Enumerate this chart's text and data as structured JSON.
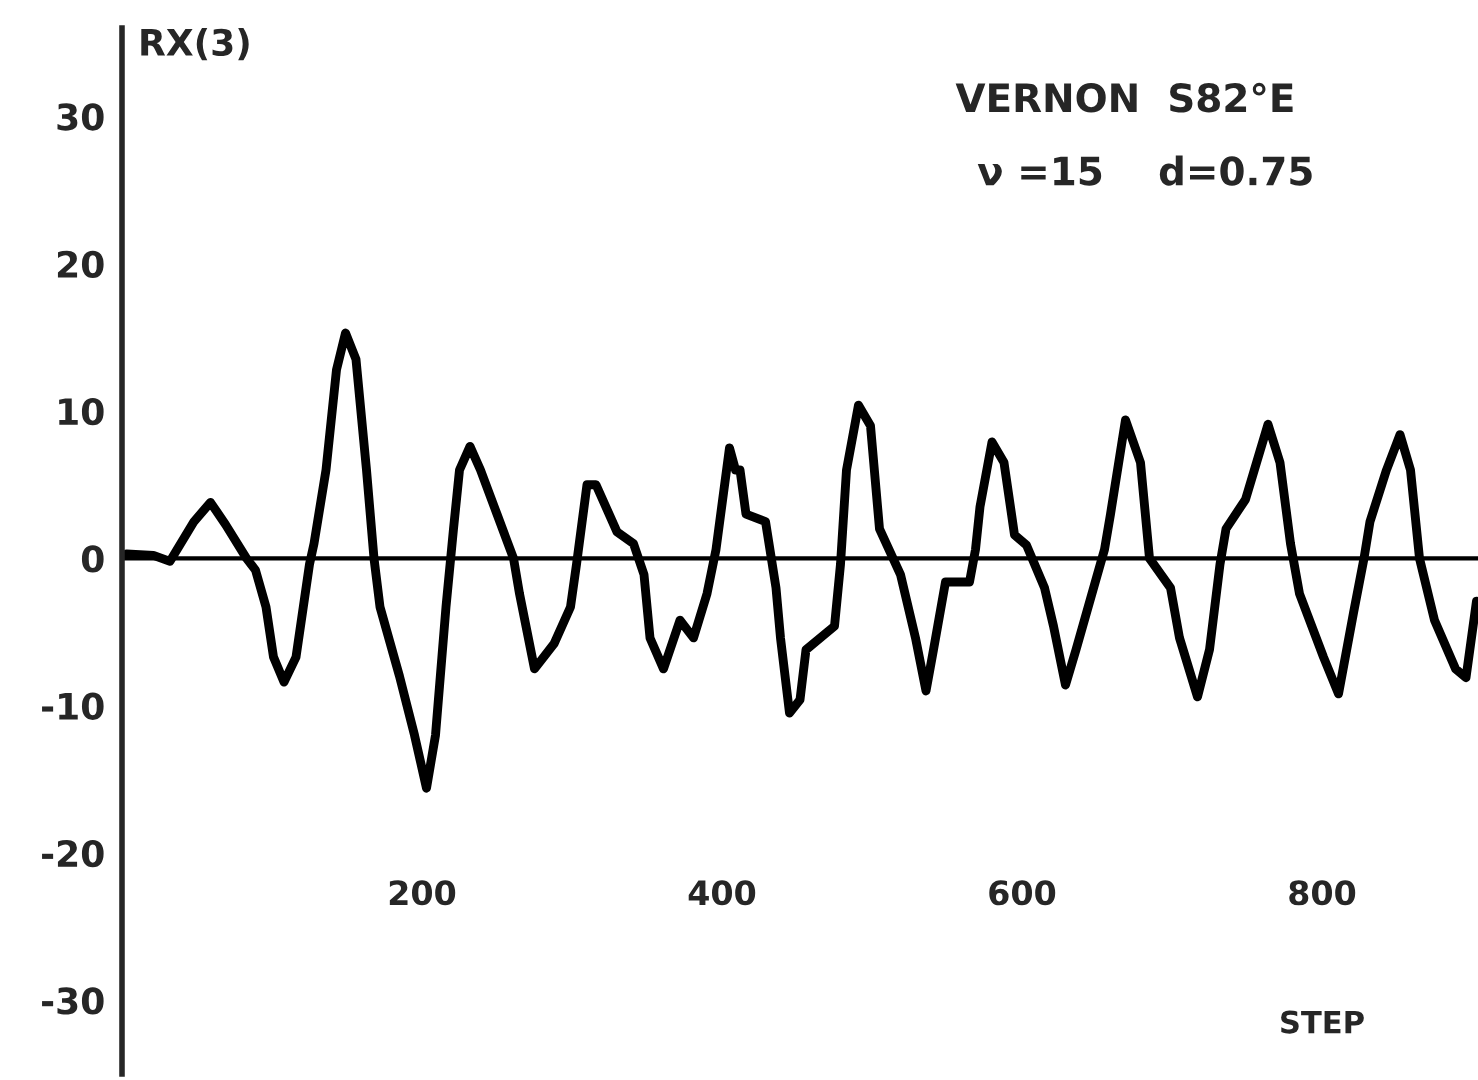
{
  "chart_data": {
    "type": "line",
    "ylabel": "RX(3)",
    "xlabel": "STEP",
    "annotations": [
      "VERNON  S82°E",
      "ν =15    d=0.75"
    ],
    "xlim": [
      0,
      904
    ],
    "ylim": [
      -35,
      36
    ],
    "xticks": [
      200,
      400,
      600,
      800
    ],
    "yticks": [
      -30,
      -20,
      -10,
      0,
      10,
      20,
      30
    ],
    "grid": false,
    "legend": false,
    "marker": "none",
    "line_style": "solid",
    "ref_lines": [
      {
        "axis": "y",
        "value": 0,
        "color": "#000000",
        "line_style": "solid"
      }
    ],
    "series": [
      {
        "color": "#000000",
        "x": [
          3,
          21,
          32,
          48,
          59,
          69,
          83,
          89,
          96,
          101,
          108,
          116,
          125,
          128,
          136,
          143,
          149,
          156,
          163,
          168,
          172,
          185,
          195,
          203,
          209,
          216,
          221,
          225,
          232,
          239,
          250,
          261,
          265,
          275,
          288,
          299,
          303,
          310,
          316,
          330,
          341,
          348,
          352,
          361,
          372,
          381,
          390,
          396,
          405,
          409,
          412,
          416,
          429,
          436,
          439,
          445,
          452,
          456,
          475,
          479,
          483,
          491,
          499,
          505,
          519,
          529,
          536,
          541,
          549,
          565,
          569,
          572,
          580,
          588,
          595,
          603,
          615,
          621,
          629,
          636,
          655,
          659,
          669,
          679,
          685,
          699,
          705,
          717,
          725,
          732,
          736,
          749,
          764,
          772,
          779,
          785,
          801,
          811,
          821,
          828,
          832,
          843,
          852,
          859,
          865,
          875,
          889,
          896,
          903
        ],
        "values": [
          0.3,
          0.2,
          -0.2,
          2.5,
          3.8,
          2.3,
          0,
          -0.8,
          -3.3,
          -6.7,
          -8.4,
          -6.7,
          -0.4,
          1,
          6,
          12.8,
          15.3,
          13.5,
          6,
          0,
          -3.3,
          -8,
          -12,
          -15.6,
          -12,
          -3.3,
          2,
          6,
          7.6,
          6,
          3,
          0,
          -2.4,
          -7.5,
          -5.8,
          -3.3,
          -0.4,
          5,
          5,
          1.8,
          1,
          -1.1,
          -5.4,
          -7.5,
          -4.2,
          -5.4,
          -2.4,
          0.6,
          7.5,
          6,
          6,
          3,
          2.5,
          -2,
          -5.4,
          -10.5,
          -9.6,
          -6.2,
          -4.6,
          -0.4,
          6,
          10.4,
          9,
          2,
          -1.1,
          -5.4,
          -9,
          -6.2,
          -1.6,
          -1.6,
          0.6,
          3.5,
          7.9,
          6.5,
          1.6,
          0.9,
          -2,
          -4.6,
          -8.6,
          -6.2,
          0.6,
          3,
          9.4,
          6.5,
          0,
          -2,
          -5.4,
          -9.4,
          -6.2,
          -0.4,
          2,
          4,
          9.1,
          6.5,
          1,
          -2.4,
          -6.7,
          -9.2,
          -3.7,
          0,
          2.5,
          6,
          8.4,
          6,
          0,
          -4.2,
          -7.5,
          -8.1,
          -2.9
        ]
      }
    ]
  }
}
